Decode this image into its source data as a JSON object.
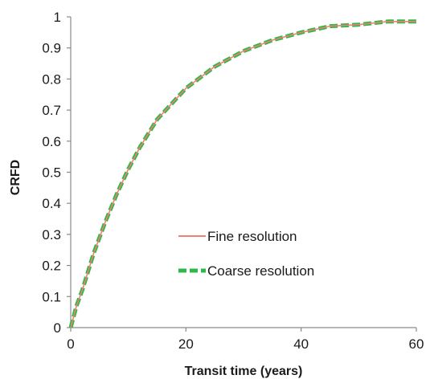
{
  "chart_data": {
    "type": "line",
    "title": "",
    "xlabel": "Transit time (years)",
    "ylabel": "CRFD",
    "xlim": [
      0,
      60
    ],
    "ylim": [
      0,
      1
    ],
    "x_ticks": [
      "0",
      "20",
      "40",
      "60"
    ],
    "y_ticks": [
      "0",
      "0.1",
      "0.2",
      "0.3",
      "0.4",
      "0.5",
      "0.6",
      "0.7",
      "0.8",
      "0.9",
      "1"
    ],
    "grid": false,
    "legend_position": "lower-right",
    "series": [
      {
        "name": "Fine resolution",
        "color": "#f08070",
        "style": "solid-thin",
        "x": [
          0,
          1,
          2,
          4,
          6,
          8,
          10,
          12,
          15,
          20,
          25,
          30,
          35,
          40,
          45,
          50,
          55,
          60
        ],
        "y": [
          0,
          0.07,
          0.12,
          0.24,
          0.34,
          0.43,
          0.51,
          0.58,
          0.67,
          0.77,
          0.84,
          0.89,
          0.925,
          0.95,
          0.97,
          0.975,
          0.985,
          0.985
        ]
      },
      {
        "name": "Coarse resolution",
        "color": "#2fb84a",
        "style": "dashed-thick",
        "x": [
          0,
          1,
          2,
          4,
          6,
          8,
          10,
          12,
          15,
          20,
          25,
          30,
          35,
          40,
          45,
          50,
          55,
          60
        ],
        "y": [
          0,
          0.07,
          0.12,
          0.24,
          0.34,
          0.43,
          0.51,
          0.58,
          0.67,
          0.77,
          0.84,
          0.89,
          0.925,
          0.95,
          0.97,
          0.975,
          0.985,
          0.985
        ]
      }
    ]
  }
}
